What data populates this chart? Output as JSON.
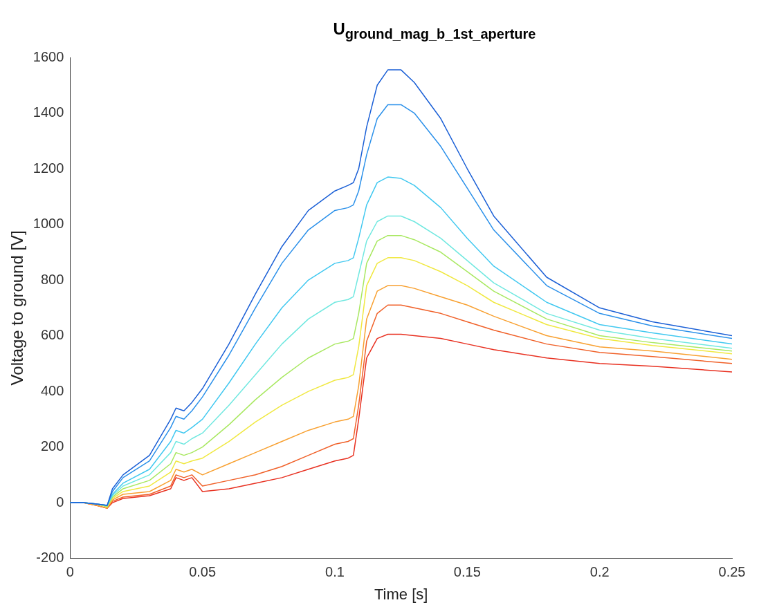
{
  "chart_data": {
    "type": "line",
    "title": "U$_{ground_mag_b_1st_aperture}$",
    "xlabel": "Time [s]",
    "ylabel": "Voltage to ground [V]",
    "x": [
      0,
      0.005,
      0.01,
      0.014,
      0.016,
      0.02,
      0.03,
      0.038,
      0.04,
      0.043,
      0.046,
      0.05,
      0.06,
      0.07,
      0.08,
      0.09,
      0.1,
      0.105,
      0.107,
      0.109,
      0.112,
      0.116,
      0.12,
      0.125,
      0.13,
      0.14,
      0.15,
      0.16,
      0.18,
      0.2,
      0.22,
      0.25
    ],
    "series": [
      {
        "color": "#1a5fd6",
        "values": [
          0,
          0,
          -5,
          -10,
          50,
          100,
          170,
          300,
          340,
          330,
          360,
          410,
          570,
          750,
          920,
          1050,
          1120,
          1140,
          1150,
          1200,
          1350,
          1500,
          1555,
          1555,
          1510,
          1380,
          1200,
          1030,
          810,
          700,
          650,
          600
        ]
      },
      {
        "color": "#2a90ea",
        "values": [
          0,
          0,
          -5,
          -10,
          40,
          90,
          150,
          270,
          310,
          300,
          330,
          380,
          530,
          700,
          860,
          980,
          1050,
          1060,
          1070,
          1120,
          1250,
          1380,
          1430,
          1430,
          1400,
          1280,
          1130,
          980,
          780,
          680,
          635,
          590
        ]
      },
      {
        "color": "#40c8f0",
        "values": [
          0,
          0,
          -5,
          -10,
          30,
          70,
          120,
          220,
          260,
          250,
          270,
          300,
          430,
          570,
          700,
          800,
          860,
          870,
          880,
          950,
          1070,
          1150,
          1170,
          1165,
          1140,
          1060,
          950,
          850,
          720,
          640,
          610,
          570
        ]
      },
      {
        "color": "#70e8e0",
        "values": [
          0,
          0,
          -5,
          -10,
          25,
          60,
          100,
          180,
          220,
          210,
          230,
          250,
          350,
          460,
          570,
          660,
          720,
          730,
          740,
          820,
          940,
          1010,
          1030,
          1030,
          1010,
          950,
          870,
          790,
          680,
          620,
          590,
          555
        ]
      },
      {
        "color": "#a8e860",
        "values": [
          0,
          0,
          -5,
          -15,
          20,
          50,
          80,
          140,
          180,
          170,
          180,
          200,
          280,
          370,
          450,
          520,
          570,
          580,
          590,
          680,
          860,
          940,
          960,
          960,
          945,
          900,
          830,
          760,
          660,
          600,
          575,
          545
        ]
      },
      {
        "color": "#f0e840",
        "values": [
          0,
          0,
          -5,
          -15,
          15,
          40,
          60,
          110,
          150,
          140,
          150,
          160,
          220,
          290,
          350,
          400,
          440,
          450,
          460,
          560,
          780,
          860,
          880,
          880,
          870,
          830,
          780,
          720,
          640,
          590,
          565,
          535
        ]
      },
      {
        "color": "#f8a030",
        "values": [
          0,
          0,
          -10,
          -20,
          10,
          30,
          40,
          80,
          120,
          110,
          120,
          100,
          140,
          180,
          220,
          260,
          290,
          300,
          310,
          420,
          660,
          760,
          780,
          780,
          770,
          740,
          710,
          670,
          600,
          560,
          545,
          515
        ]
      },
      {
        "color": "#f06028",
        "values": [
          0,
          0,
          -10,
          -20,
          5,
          20,
          30,
          60,
          100,
          90,
          100,
          60,
          80,
          100,
          130,
          170,
          210,
          220,
          230,
          350,
          580,
          680,
          710,
          710,
          700,
          680,
          650,
          620,
          570,
          540,
          525,
          500
        ]
      },
      {
        "color": "#e83020",
        "values": [
          0,
          0,
          -10,
          -20,
          0,
          15,
          25,
          50,
          90,
          80,
          90,
          40,
          50,
          70,
          90,
          120,
          150,
          160,
          170,
          300,
          520,
          590,
          605,
          605,
          600,
          590,
          570,
          550,
          520,
          500,
          490,
          470
        ]
      }
    ],
    "xlim": [
      0,
      0.25
    ],
    "xticks": [
      0,
      0.05,
      0.1,
      0.15,
      0.2,
      0.25
    ],
    "ylim": [
      -200,
      1600
    ],
    "yticks": [
      -200,
      0,
      200,
      400,
      600,
      800,
      1000,
      1200,
      1400,
      1600
    ],
    "grid": false,
    "legend": false,
    "marker": "none",
    "line_style": "solid"
  }
}
